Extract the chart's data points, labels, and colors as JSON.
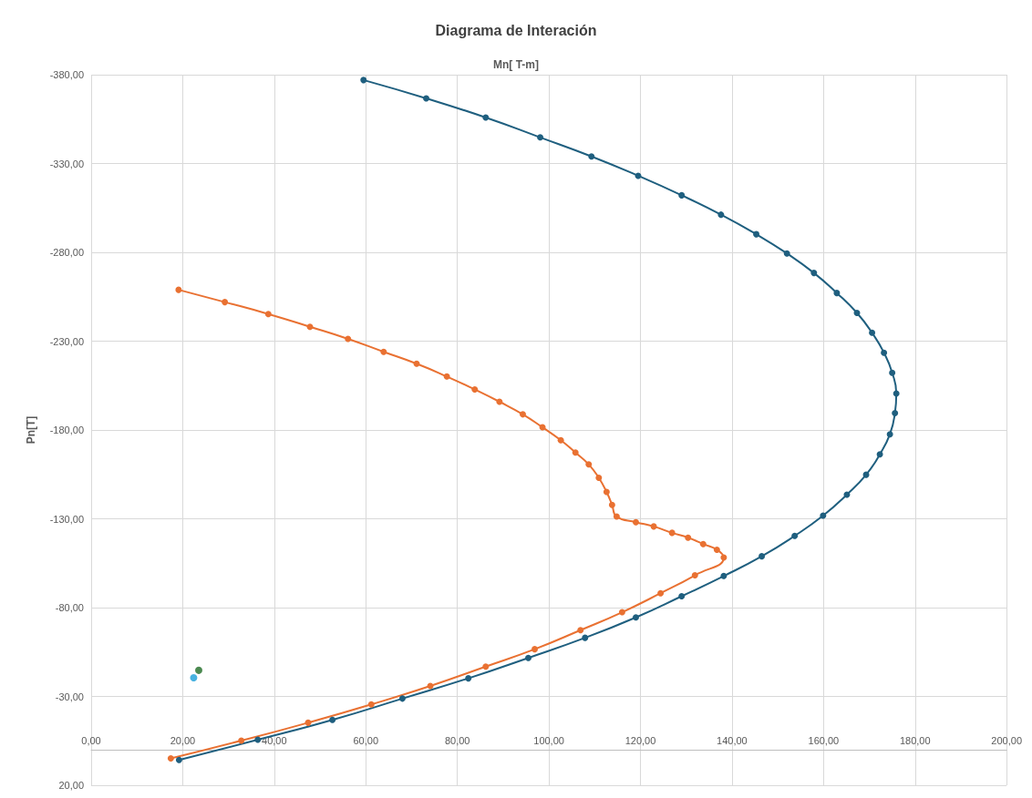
{
  "chart_data": {
    "type": "line",
    "title": "Diagrama de Interación",
    "xlabel": "Mn[ T-m]",
    "ylabel": "Pn[T]",
    "xlim": [
      0,
      200
    ],
    "xticks": [
      {
        "value": 0,
        "label": "0,00"
      },
      {
        "value": 20,
        "label": "20,00"
      },
      {
        "value": 40,
        "label": "40,00"
      },
      {
        "value": 60,
        "label": "60,00"
      },
      {
        "value": 80,
        "label": "80,00"
      },
      {
        "value": 100,
        "label": "100,00"
      },
      {
        "value": 120,
        "label": "120,00"
      },
      {
        "value": 140,
        "label": "140,00"
      },
      {
        "value": 160,
        "label": "160,00"
      },
      {
        "value": 180,
        "label": "180,00"
      },
      {
        "value": 200,
        "label": "200,00"
      }
    ],
    "ylim": [
      20,
      -380
    ],
    "yticks": [
      {
        "value": -380,
        "label": "-380,00"
      },
      {
        "value": -330,
        "label": "-330,00"
      },
      {
        "value": -280,
        "label": "-280,00"
      },
      {
        "value": -230,
        "label": "-230,00"
      },
      {
        "value": -180,
        "label": "-180,00"
      },
      {
        "value": -130,
        "label": "-130,00"
      },
      {
        "value": -80,
        "label": "-80,00"
      },
      {
        "value": -30,
        "label": "-30,00"
      },
      {
        "value": 20,
        "label": "20,00"
      }
    ],
    "grid": true,
    "marker": "circle",
    "line_style": "solid",
    "series": [
      {
        "color": "#1f5f7f",
        "x": [
          59.5,
          73.2,
          86.2,
          98.1,
          109.3,
          119.5,
          129.0,
          137.6,
          145.3,
          152.0,
          157.9,
          162.9,
          167.3,
          170.6,
          173.2,
          175.0,
          175.9,
          175.6,
          174.5,
          172.3,
          169.3,
          165.1,
          159.9,
          153.7,
          146.5,
          138.2,
          129.0,
          119.0,
          107.9,
          95.5,
          82.4,
          68.0,
          52.7,
          36.4,
          19.2
        ],
        "values": [
          -377,
          -366.7,
          -355.9,
          -344.7,
          -334,
          -323.1,
          -312.1,
          -301.2,
          -290.2,
          -279.4,
          -268.4,
          -257.1,
          -245.9,
          -234.7,
          -223.5,
          -212.2,
          -200.5,
          -189.5,
          -177.6,
          -166.3,
          -154.8,
          -143.6,
          -131.8,
          -120.4,
          -108.9,
          -97.8,
          -86.4,
          -74.5,
          -63.0,
          -51.7,
          -40.2,
          -28.8,
          -16.8,
          -5.6,
          5.8
        ]
      },
      {
        "color": "#e97132",
        "x": [
          19.1,
          29.2,
          38.7,
          47.8,
          56.1,
          63.9,
          71.1,
          77.7,
          83.8,
          89.2,
          94.3,
          98.6,
          102.6,
          105.8,
          108.7,
          110.9,
          112.6,
          113.8,
          114.8,
          119.0,
          122.9,
          126.9,
          130.4,
          133.7,
          136.7,
          138.2,
          131.9,
          124.4,
          116.0,
          106.9,
          96.9,
          86.2,
          74.1,
          61.2,
          47.4,
          32.8,
          17.4
        ],
        "values": [
          -258.9,
          -252.0,
          -245.3,
          -238.1,
          -231.3,
          -224.0,
          -217.3,
          -210.1,
          -202.8,
          -195.9,
          -188.8,
          -181.5,
          -174.2,
          -167.3,
          -160.6,
          -153.1,
          -145.1,
          -137.8,
          -131.3,
          -128.1,
          -125.7,
          -122.1,
          -119.4,
          -115.8,
          -112.6,
          -108.2,
          -98.2,
          -88.1,
          -77.4,
          -67.3,
          -56.6,
          -46.8,
          -35.9,
          -25.5,
          -15.2,
          -5.1,
          4.9
        ]
      },
      {
        "type": "scatter",
        "color": "#1e6b24",
        "x": [
          23.5
        ],
        "values": [
          -44.7
        ]
      },
      {
        "type": "scatter",
        "color": "#1a9fd8",
        "x": [
          22.4
        ],
        "values": [
          -40.5
        ]
      }
    ]
  }
}
